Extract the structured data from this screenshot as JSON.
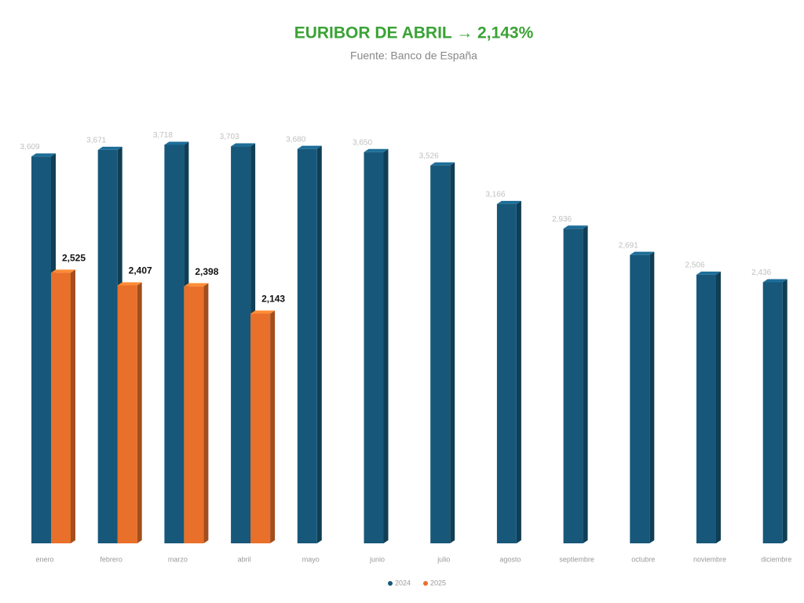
{
  "chart_data": {
    "type": "bar3d",
    "title": "EURIBOR DE ABRIL → 2,143%",
    "subtitle": "Fuente: Banco de España",
    "categories": [
      "enero",
      "febrero",
      "marzo",
      "abril",
      "mayo",
      "junio",
      "julio",
      "agosto",
      "septiembre",
      "octubre",
      "noviembre",
      "diciembre"
    ],
    "series": [
      {
        "name": "2024",
        "color": "#17587a",
        "values": [
          3.609,
          3.671,
          3.718,
          3.703,
          3.68,
          3.65,
          3.526,
          3.166,
          2.936,
          2.691,
          2.506,
          2.436
        ],
        "value_labels": [
          "3,609",
          "3,671",
          "3,718",
          "3,703",
          "3,680",
          "3,650",
          "3,526",
          "3,166",
          "2,936",
          "2,691",
          "2,506",
          "2,436"
        ]
      },
      {
        "name": "2025",
        "color": "#e8702a",
        "values": [
          2.525,
          2.407,
          2.398,
          2.143,
          null,
          null,
          null,
          null,
          null,
          null,
          null,
          null
        ],
        "value_labels": [
          "2,525",
          "2,407",
          "2,398",
          "2,143",
          null,
          null,
          null,
          null,
          null,
          null,
          null,
          null
        ]
      }
    ],
    "legend": "bottom"
  }
}
